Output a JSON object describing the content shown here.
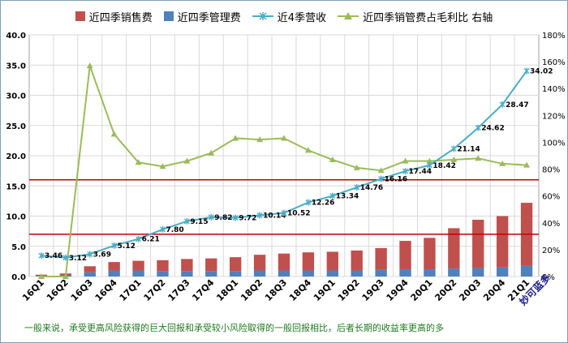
{
  "chart_data": {
    "type": "bar",
    "title": "",
    "categories": [
      "16Q1",
      "16Q2",
      "16Q3",
      "16Q4",
      "17Q1",
      "17Q2",
      "17Q3",
      "17Q4",
      "18Q1",
      "18Q2",
      "18Q3",
      "18Q4",
      "19Q1",
      "19Q2",
      "19Q3",
      "19Q4",
      "20Q1",
      "20Q2",
      "20Q3",
      "20Q4",
      "21Q1"
    ],
    "series": [
      {
        "name": "近四季销售费",
        "kind": "bar",
        "color": "#c0504d",
        "axis": "left",
        "values": [
          0.2,
          0.3,
          1.0,
          1.4,
          1.6,
          1.8,
          2.0,
          2.1,
          2.3,
          2.6,
          2.8,
          3.0,
          3.1,
          3.3,
          3.6,
          4.7,
          5.2,
          6.7,
          8.0,
          8.5,
          10.4
        ]
      },
      {
        "name": "近四季管理费",
        "kind": "bar",
        "color": "#4f81bd",
        "axis": "left",
        "values": [
          0.1,
          0.2,
          0.7,
          1.0,
          1.0,
          0.9,
          0.9,
          0.9,
          0.9,
          1.0,
          1.0,
          1.0,
          1.0,
          1.0,
          1.1,
          1.2,
          1.2,
          1.3,
          1.4,
          1.5,
          1.8
        ]
      },
      {
        "name": "近4季营收",
        "kind": "line",
        "color": "#4bacc6",
        "axis": "left",
        "values": [
          3.46,
          3.12,
          3.69,
          5.12,
          6.21,
          7.8,
          9.15,
          9.82,
          9.72,
          10.14,
          10.52,
          12.26,
          13.34,
          14.76,
          16.16,
          17.44,
          18.42,
          21.14,
          24.62,
          28.47,
          34.02
        ]
      },
      {
        "name": "近四季销管费占毛利比 右轴",
        "kind": "line",
        "color": "#9bbb59",
        "axis": "right",
        "values": [
          0,
          0,
          157,
          106,
          85,
          82,
          86,
          92,
          103,
          102,
          103,
          94,
          87,
          81,
          79,
          86,
          86,
          87,
          88,
          84,
          83
        ]
      }
    ],
    "data_labels": [
      "3.46",
      "3.12",
      "3.69",
      "5.12",
      "6.21",
      "7.80",
      "9.15",
      "9.82",
      "9.72",
      "10.14",
      "10.52",
      "12.26",
      "13.34",
      "14.76",
      "16.16",
      "17.44",
      "18.42",
      "21.14",
      "24.62",
      "28.47",
      "34.02"
    ],
    "yaxis_left": {
      "min": 0,
      "max": 40,
      "step": 5,
      "tick_labels": [
        "0.0",
        "5.0",
        "10.0",
        "15.0",
        "20.0",
        "25.0",
        "30.0",
        "35.0",
        "40.0"
      ]
    },
    "yaxis_right": {
      "min": 0,
      "max": 180,
      "step": 20,
      "tick_labels": [
        "0%",
        "20%",
        "40%",
        "60%",
        "80%",
        "100%",
        "120%",
        "140%",
        "160%",
        "180%"
      ]
    },
    "reference_lines": [
      {
        "value": 16.0,
        "color": "#c00000"
      },
      {
        "value": 7.0,
        "color": "#c00000"
      }
    ],
    "grid": true,
    "legend": "top",
    "xlabel": "",
    "ylabel": ""
  },
  "footnote": "一般来说，承受更高风险获得的巨大回报和承受较小风险取得的一般回报相比，后者长期的收益率更高的多",
  "brand": "妙可蓝多"
}
